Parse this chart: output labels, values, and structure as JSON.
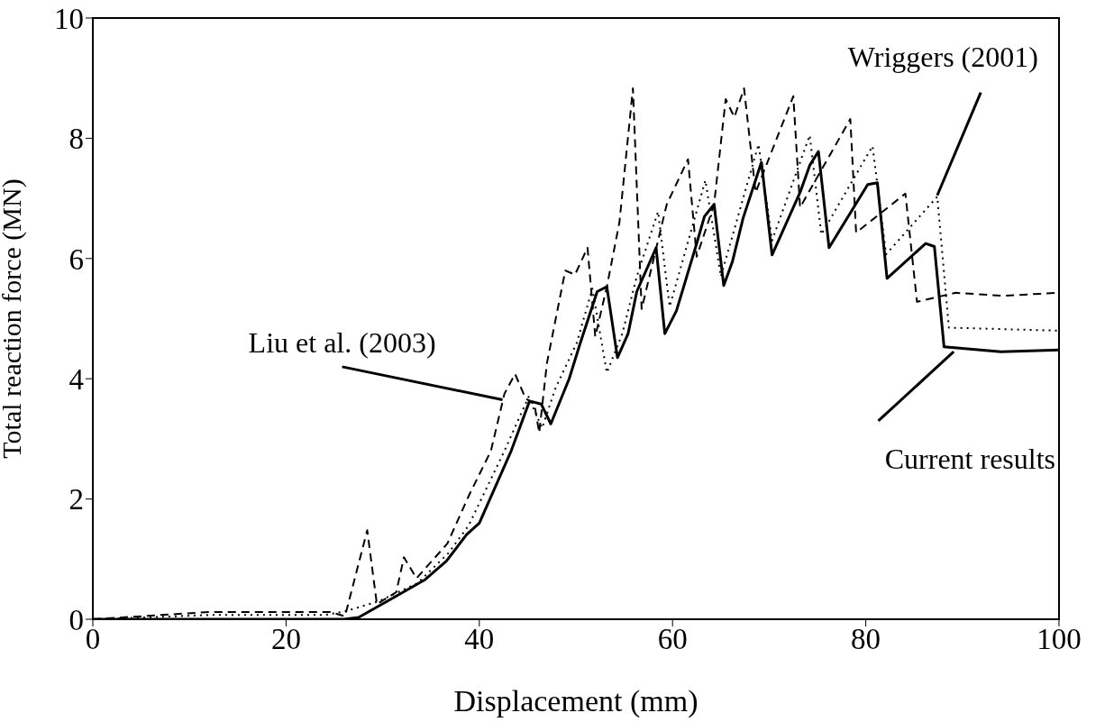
{
  "chart_data": {
    "type": "line",
    "xlabel": "Displacement (mm)",
    "ylabel": "Total reaction force (MN)",
    "xlim": [
      0,
      100
    ],
    "ylim": [
      0,
      10
    ],
    "xticks": [
      0,
      20,
      40,
      60,
      80,
      100
    ],
    "yticks": [
      0,
      2,
      4,
      6,
      8,
      10
    ],
    "grid": false,
    "marker": "none",
    "series": [
      {
        "name": "Liu et al. (2003)",
        "color": "#000000",
        "line_style": "dashed",
        "x": [
          0,
          12,
          24.6,
          26.1,
          28.4,
          29.4,
          31.4,
          32.2,
          33.5,
          36.7,
          38.9,
          41.2,
          42.6,
          43.7,
          44.8,
          45.7,
          46.2,
          47.0,
          48.9,
          49.9,
          51.2,
          52.0,
          53.2,
          54.5,
          55.9,
          56.8,
          59.4,
          61.6,
          62.5,
          64.3,
          65.5,
          66.4,
          67.4,
          68.6,
          72.5,
          73.2,
          78.4,
          79.0,
          84.1,
          85.3,
          89.3,
          94.2,
          100
        ],
        "values": [
          0,
          0.12,
          0.12,
          0.05,
          1.48,
          0.25,
          0.45,
          1.03,
          0.68,
          1.26,
          2.05,
          2.8,
          3.75,
          4.08,
          3.67,
          3.58,
          3.1,
          4.26,
          5.8,
          5.73,
          6.18,
          4.7,
          5.53,
          6.6,
          8.83,
          5.16,
          6.9,
          7.65,
          6.03,
          6.9,
          8.65,
          8.35,
          8.83,
          7.1,
          8.7,
          6.85,
          8.32,
          6.43,
          7.08,
          5.28,
          5.43,
          5.38,
          5.43
        ]
      },
      {
        "name": "Wriggers (2001)",
        "color": "#000000",
        "line_style": "dotted",
        "x": [
          0,
          12,
          24,
          26.1,
          29.6,
          33.6,
          36.8,
          38.9,
          42.6,
          45.1,
          46.5,
          47.9,
          50.1,
          51.7,
          53.2,
          54.8,
          56.3,
          58.5,
          59.7,
          63.4,
          65.0,
          68.9,
          70.3,
          74.2,
          75.4,
          80.7,
          82.1,
          87.4,
          88.6,
          100
        ],
        "values": [
          0,
          0.07,
          0.07,
          0.13,
          0.3,
          0.6,
          1.1,
          1.56,
          2.8,
          3.7,
          3.18,
          3.85,
          4.6,
          5.5,
          4.1,
          4.75,
          5.7,
          6.78,
          5.2,
          7.3,
          5.7,
          7.9,
          6.3,
          8.05,
          6.4,
          7.87,
          6.07,
          7.03,
          4.85,
          4.8
        ]
      },
      {
        "name": "Current results",
        "color": "#000000",
        "line_style": "solid",
        "x": [
          0,
          26,
          27.5,
          30.8,
          34.4,
          36.6,
          38.7,
          40,
          43.3,
          45.2,
          46.4,
          47.4,
          49.3,
          50.4,
          52.2,
          53.2,
          54.3,
          55.4,
          56.3,
          58.3,
          59.2,
          60.4,
          62.5,
          63.3,
          64.3,
          65.3,
          66.2,
          67.3,
          69.2,
          70.3,
          73.2,
          74.2,
          75.1,
          76.2,
          80.2,
          81.2,
          82.2,
          86.2,
          87.1,
          88.1,
          94,
          100
        ],
        "values": [
          0,
          0,
          0.03,
          0.33,
          0.66,
          0.97,
          1.41,
          1.6,
          2.8,
          3.63,
          3.58,
          3.25,
          4.0,
          4.57,
          5.45,
          5.53,
          4.35,
          4.75,
          5.45,
          6.18,
          4.75,
          5.13,
          6.25,
          6.7,
          6.9,
          5.55,
          5.95,
          6.67,
          7.6,
          6.06,
          7.1,
          7.55,
          7.78,
          6.18,
          7.23,
          7.26,
          5.67,
          6.25,
          6.2,
          4.53,
          4.45,
          4.48
        ]
      }
    ]
  }
}
